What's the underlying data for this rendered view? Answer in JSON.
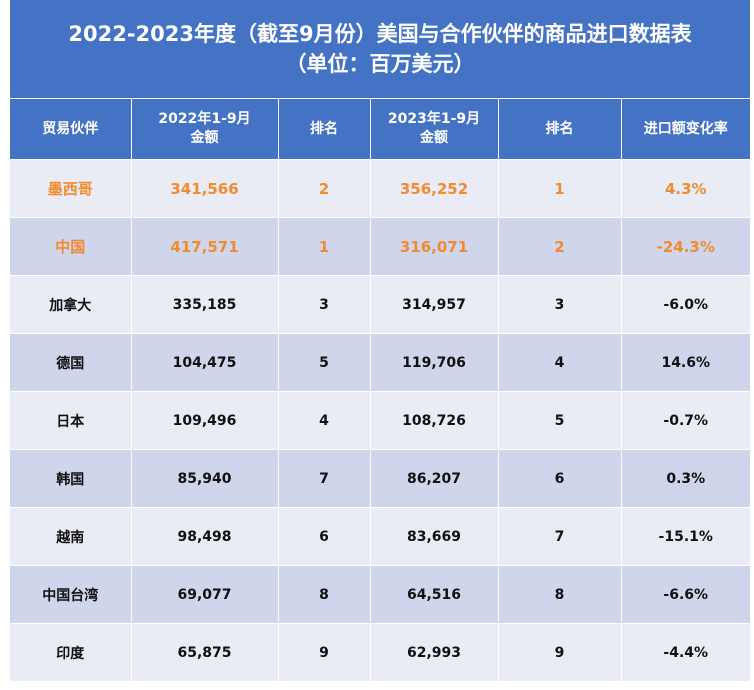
{
  "title": {
    "line1": "2022-2023年度（截至9月份）美国与合作伙伴的商品进口数据表",
    "line2": "（单位：百万美元）"
  },
  "headers": [
    {
      "line1": "贸易伙伴",
      "line2": ""
    },
    {
      "line1": "2022年1-9月",
      "line2": "金额"
    },
    {
      "line1": "排名",
      "line2": ""
    },
    {
      "line1": "2023年1-9月",
      "line2": "金额"
    },
    {
      "line1": "排名",
      "line2": ""
    },
    {
      "line1": "进口额变化率",
      "line2": ""
    }
  ],
  "rows": [
    {
      "partner": "墨西哥",
      "amt2022": "341,566",
      "rank2022": "2",
      "amt2023": "356,252",
      "rank2023": "1",
      "change": "4.3%"
    },
    {
      "partner": "中国",
      "amt2022": "417,571",
      "rank2022": "1",
      "amt2023": "316,071",
      "rank2023": "2",
      "change": "-24.3%"
    },
    {
      "partner": "加拿大",
      "amt2022": "335,185",
      "rank2022": "3",
      "amt2023": "314,957",
      "rank2023": "3",
      "change": "-6.0%"
    },
    {
      "partner": "德国",
      "amt2022": "104,475",
      "rank2022": "5",
      "amt2023": "119,706",
      "rank2023": "4",
      "change": "14.6%"
    },
    {
      "partner": "日本",
      "amt2022": "109,496",
      "rank2022": "4",
      "amt2023": "108,726",
      "rank2023": "5",
      "change": "-0.7%"
    },
    {
      "partner": "韩国",
      "amt2022": "85,940",
      "rank2022": "7",
      "amt2023": "86,207",
      "rank2023": "6",
      "change": "0.3%"
    },
    {
      "partner": "越南",
      "amt2022": "98,498",
      "rank2022": "6",
      "amt2023": "83,669",
      "rank2023": "7",
      "change": "-15.1%"
    },
    {
      "partner": "中国台湾",
      "amt2022": "69,077",
      "rank2022": "8",
      "amt2023": "64,516",
      "rank2023": "8",
      "change": "-6.6%"
    },
    {
      "partner": "印度",
      "amt2022": "65,875",
      "rank2022": "9",
      "amt2023": "62,993",
      "rank2023": "9",
      "change": "-4.4%"
    }
  ],
  "colors": {
    "header_bg": "#4472C4",
    "row_light": "#E9ECF5",
    "row_dark": "#CFD5EA",
    "highlight_text": "#F28A2F"
  }
}
